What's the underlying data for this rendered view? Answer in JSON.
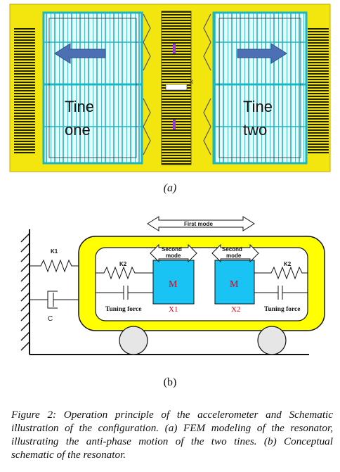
{
  "figure_a": {
    "tine_one_line1": "Tine",
    "tine_one_line2": "one",
    "tine_two_line1": "Tine",
    "tine_two_line2": "two",
    "center_mark": "x",
    "panel_label": "(a)",
    "colors": {
      "frame": "#f2e60e",
      "mesh": "#1bb6c1",
      "arrow": "#4d6fb3",
      "comb": "#222222"
    }
  },
  "figure_b": {
    "first_mode": "First mode",
    "second_mode_line1": "Second",
    "second_mode_line2": "mode",
    "k1": "K1",
    "k2": "K2",
    "c": "C",
    "mass": "M",
    "tuning_force": "Tuning force",
    "x1": "X1",
    "x2": "X2",
    "panel_label": "(b)",
    "colors": {
      "frame": "#ffff00",
      "mass": "#19c3f3",
      "label_red": "#e0001b",
      "wheel": "#e6e6e6"
    }
  },
  "caption": "Figure 2: Operation principle of the accelerometer and Schematic illustration of the configuration. (a) FEM modeling of the resonator, illustrating the anti-phase motion of the two tines. (b) Conceptual schematic of the resonator."
}
